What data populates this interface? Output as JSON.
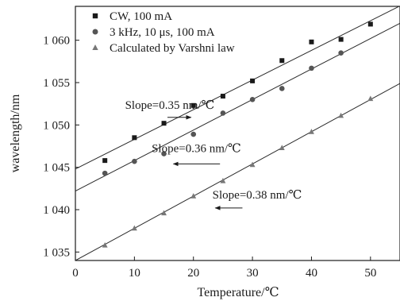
{
  "chart_data": {
    "type": "scatter",
    "xlabel": "Temperature/℃",
    "ylabel": "wavelength/nm",
    "xlim": [
      0,
      55
    ],
    "ylim": [
      1034,
      1064
    ],
    "x_ticks": [
      0,
      10,
      20,
      30,
      40,
      50
    ],
    "x_tick_labels": [
      "0",
      "10",
      "20",
      "30",
      "40",
      "50"
    ],
    "y_ticks": [
      1035,
      1040,
      1045,
      1050,
      1055,
      1060
    ],
    "y_tick_labels": [
      "1 035",
      "1 040",
      "1 045",
      "1 050",
      "1 055",
      "1 060"
    ],
    "legend_position": "top-left",
    "grid": false,
    "series": [
      {
        "name": "CW, 100 mA",
        "marker": "square",
        "color": "#1a1a1a",
        "x": [
          5,
          10,
          15,
          20,
          25,
          30,
          35,
          40,
          45,
          50
        ],
        "y": [
          1045.8,
          1048.5,
          1050.2,
          1052.3,
          1053.4,
          1055.2,
          1057.6,
          1059.8,
          1060.1,
          1061.9
        ],
        "fit": {
          "slope": 0.35,
          "x_range": [
            0,
            55
          ],
          "y_at_x0": 1044.8
        }
      },
      {
        "name": "3 kHz, 10 μs, 100 mA",
        "marker": "circle",
        "color": "#555555",
        "x": [
          5,
          10,
          15,
          20,
          25,
          30,
          35,
          40,
          45
        ],
        "y": [
          1044.3,
          1045.7,
          1046.6,
          1048.9,
          1051.4,
          1053.0,
          1054.3,
          1056.7,
          1058.5
        ],
        "fit": {
          "slope": 0.36,
          "x_range": [
            0,
            55
          ],
          "y_at_x0": 1042.2
        }
      },
      {
        "name": "Calculated by Varshni law",
        "marker": "triangle",
        "color": "#777777",
        "x": [
          5,
          10,
          15,
          20,
          25,
          30,
          35,
          40,
          45,
          50
        ],
        "y": [
          1035.8,
          1037.8,
          1039.6,
          1041.6,
          1043.4,
          1045.3,
          1047.3,
          1049.2,
          1051.1,
          1053.1
        ],
        "fit": {
          "slope": 0.38,
          "x_range": [
            0,
            55
          ],
          "y_at_x0": 1034.0
        }
      }
    ],
    "annotations": [
      {
        "text": "Slope=0.35 nm/℃",
        "arrow": "right",
        "x": 16,
        "y": 1051.9,
        "arrow_x": [
          15.6,
          19.6
        ],
        "arrow_y": 1050.9
      },
      {
        "text": "Slope=0.36 nm/℃",
        "arrow": "left",
        "x": 20.5,
        "y": 1046.8,
        "arrow_x": [
          24.5,
          16.6
        ],
        "arrow_y": 1045.4
      },
      {
        "text": "Slope=0.38 nm/℃",
        "arrow": "left",
        "x": 30.8,
        "y": 1041.3,
        "arrow_x": [
          28.3,
          23.7
        ],
        "arrow_y": 1040.2
      }
    ]
  }
}
